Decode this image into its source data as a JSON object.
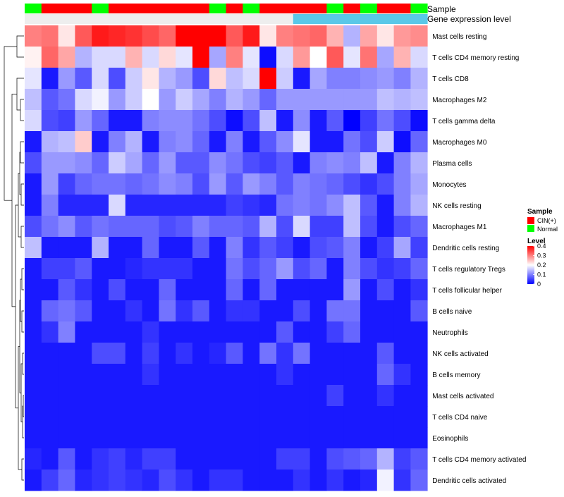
{
  "chart_data": {
    "type": "heatmap",
    "title": "",
    "annotation_tracks": [
      {
        "name": "Sample",
        "values": [
          "Normal",
          "CIN(+)",
          "CIN(+)",
          "CIN(+)",
          "Normal",
          "CIN(+)",
          "CIN(+)",
          "CIN(+)",
          "CIN(+)",
          "CIN(+)",
          "CIN(+)",
          "Normal",
          "CIN(+)",
          "Normal",
          "CIN(+)",
          "CIN(+)",
          "CIN(+)",
          "CIN(+)",
          "Normal",
          "CIN(+)",
          "Normal",
          "CIN(+)",
          "CIN(+)",
          "Normal"
        ]
      },
      {
        "name": "Gene expression level",
        "values": [
          "low",
          "low",
          "low",
          "low",
          "low",
          "low",
          "low",
          "low",
          "low",
          "low",
          "low",
          "low",
          "low",
          "low",
          "low",
          "low",
          "high",
          "high",
          "high",
          "high",
          "high",
          "high",
          "high",
          "high"
        ]
      }
    ],
    "track_colors": {
      "Sample": {
        "CIN(+)": "#ff0000",
        "Normal": "#00ff00"
      },
      "Gene expression level": {
        "low": "#eeeeee",
        "high": "#5ac8e8"
      }
    },
    "rows": [
      "Mast cells resting",
      "T cells CD4 memory resting",
      "T cells CD8",
      "Macrophages M2",
      "T cells gamma delta",
      "Macrophages M0",
      "Plasma cells",
      "Monocytes",
      "NK cells resting",
      "Macrophages M1",
      "Dendritic cells resting",
      "T cells regulatory  Tregs",
      "T cells follicular helper",
      "B cells naive",
      "Neutrophils",
      "NK cells activated",
      "B cells memory",
      "Mast cells activated",
      "T cells CD4 naive",
      "Eosinophils",
      "T cells CD4 memory activated",
      "Dendritic cells activated"
    ],
    "values": [
      [
        0.3,
        0.31,
        0.22,
        0.33,
        0.38,
        0.37,
        0.36,
        0.34,
        0.32,
        0.4,
        0.4,
        0.4,
        0.33,
        0.38,
        0.22,
        0.3,
        0.31,
        0.32,
        0.26,
        0.14,
        0.27,
        0.22,
        0.28,
        0.29
      ],
      [
        0.21,
        0.32,
        0.27,
        0.14,
        0.17,
        0.17,
        0.26,
        0.17,
        0.23,
        0.18,
        0.4,
        0.13,
        0.3,
        0.18,
        0.01,
        0.17,
        0.28,
        0.2,
        0.33,
        0.18,
        0.31,
        0.13,
        0.26,
        0.17
      ],
      [
        0.18,
        0.02,
        0.12,
        0.07,
        0.17,
        0.06,
        0.16,
        0.22,
        0.14,
        0.12,
        0.06,
        0.23,
        0.15,
        0.17,
        0.4,
        0.16,
        0.02,
        0.13,
        0.1,
        0.1,
        0.11,
        0.12,
        0.1,
        0.14
      ],
      [
        0.15,
        0.07,
        0.09,
        0.17,
        0.19,
        0.12,
        0.16,
        0.2,
        0.12,
        0.16,
        0.13,
        0.1,
        0.14,
        0.12,
        0.08,
        0.12,
        0.12,
        0.12,
        0.12,
        0.12,
        0.12,
        0.15,
        0.14,
        0.15
      ],
      [
        0.17,
        0.06,
        0.05,
        0.12,
        0.08,
        0.02,
        0.02,
        0.1,
        0.11,
        0.11,
        0.09,
        0.06,
        0.01,
        0.06,
        0.15,
        0.02,
        0.11,
        0.02,
        0.07,
        0.0,
        0.05,
        0.09,
        0.06,
        0.01
      ],
      [
        0.02,
        0.14,
        0.15,
        0.24,
        0.02,
        0.1,
        0.14,
        0.02,
        0.1,
        0.11,
        0.08,
        0.02,
        0.1,
        0.02,
        0.07,
        0.11,
        0.18,
        0.02,
        0.02,
        0.09,
        0.06,
        0.16,
        0.01,
        0.08
      ],
      [
        0.06,
        0.12,
        0.12,
        0.11,
        0.08,
        0.16,
        0.13,
        0.08,
        0.12,
        0.07,
        0.07,
        0.11,
        0.09,
        0.06,
        0.05,
        0.07,
        0.02,
        0.1,
        0.11,
        0.1,
        0.15,
        0.02,
        0.1,
        0.14
      ],
      [
        0.02,
        0.12,
        0.05,
        0.08,
        0.09,
        0.09,
        0.08,
        0.09,
        0.11,
        0.1,
        0.06,
        0.12,
        0.07,
        0.12,
        0.1,
        0.07,
        0.1,
        0.09,
        0.08,
        0.06,
        0.04,
        0.06,
        0.1,
        0.13
      ],
      [
        0.02,
        0.1,
        0.03,
        0.03,
        0.03,
        0.17,
        0.03,
        0.03,
        0.03,
        0.03,
        0.03,
        0.03,
        0.05,
        0.04,
        0.03,
        0.09,
        0.1,
        0.09,
        0.11,
        0.15,
        0.07,
        0.02,
        0.1,
        0.14
      ],
      [
        0.06,
        0.09,
        0.11,
        0.07,
        0.09,
        0.08,
        0.08,
        0.08,
        0.06,
        0.07,
        0.1,
        0.08,
        0.08,
        0.07,
        0.14,
        0.06,
        0.17,
        0.05,
        0.05,
        0.15,
        0.06,
        0.02,
        0.06,
        0.08
      ],
      [
        0.15,
        0.02,
        0.02,
        0.02,
        0.14,
        0.02,
        0.02,
        0.08,
        0.02,
        0.02,
        0.07,
        0.02,
        0.1,
        0.04,
        0.07,
        0.05,
        0.02,
        0.06,
        0.07,
        0.1,
        0.02,
        0.05,
        0.13,
        0.05
      ],
      [
        0.02,
        0.05,
        0.05,
        0.07,
        0.02,
        0.02,
        0.03,
        0.04,
        0.04,
        0.04,
        0.02,
        0.02,
        0.09,
        0.06,
        0.08,
        0.12,
        0.06,
        0.08,
        0.02,
        0.1,
        0.06,
        0.04,
        0.05,
        0.08
      ],
      [
        0.02,
        0.02,
        0.07,
        0.04,
        0.02,
        0.06,
        0.02,
        0.02,
        0.08,
        0.02,
        0.02,
        0.02,
        0.08,
        0.02,
        0.08,
        0.02,
        0.02,
        0.02,
        0.02,
        0.12,
        0.02,
        0.06,
        0.02,
        0.04
      ],
      [
        0.02,
        0.08,
        0.09,
        0.07,
        0.02,
        0.02,
        0.04,
        0.02,
        0.09,
        0.04,
        0.07,
        0.02,
        0.04,
        0.04,
        0.02,
        0.02,
        0.06,
        0.02,
        0.09,
        0.09,
        0.02,
        0.02,
        0.02,
        0.07
      ],
      [
        0.02,
        0.04,
        0.1,
        0.02,
        0.02,
        0.02,
        0.02,
        0.04,
        0.02,
        0.02,
        0.02,
        0.02,
        0.02,
        0.02,
        0.02,
        0.07,
        0.02,
        0.02,
        0.05,
        0.08,
        0.02,
        0.02,
        0.02,
        0.02
      ],
      [
        0.02,
        0.02,
        0.02,
        0.02,
        0.06,
        0.06,
        0.02,
        0.05,
        0.02,
        0.04,
        0.02,
        0.03,
        0.07,
        0.02,
        0.09,
        0.04,
        0.09,
        0.02,
        0.02,
        0.02,
        0.02,
        0.07,
        0.02,
        0.02
      ],
      [
        0.02,
        0.02,
        0.02,
        0.02,
        0.02,
        0.02,
        0.02,
        0.04,
        0.02,
        0.02,
        0.02,
        0.02,
        0.02,
        0.02,
        0.02,
        0.04,
        0.02,
        0.02,
        0.02,
        0.02,
        0.02,
        0.08,
        0.04,
        0.02
      ],
      [
        0.02,
        0.02,
        0.02,
        0.02,
        0.02,
        0.02,
        0.02,
        0.02,
        0.02,
        0.02,
        0.02,
        0.02,
        0.02,
        0.02,
        0.02,
        0.02,
        0.02,
        0.02,
        0.05,
        0.02,
        0.02,
        0.04,
        0.02,
        0.02
      ],
      [
        0.02,
        0.02,
        0.02,
        0.02,
        0.02,
        0.02,
        0.02,
        0.02,
        0.02,
        0.02,
        0.02,
        0.02,
        0.02,
        0.02,
        0.02,
        0.02,
        0.02,
        0.02,
        0.02,
        0.02,
        0.02,
        0.02,
        0.02,
        0.02
      ],
      [
        0.02,
        0.02,
        0.02,
        0.02,
        0.02,
        0.02,
        0.02,
        0.02,
        0.02,
        0.02,
        0.02,
        0.02,
        0.02,
        0.02,
        0.02,
        0.02,
        0.02,
        0.02,
        0.02,
        0.02,
        0.02,
        0.02,
        0.02,
        0.02
      ],
      [
        0.03,
        0.02,
        0.07,
        0.02,
        0.04,
        0.05,
        0.03,
        0.05,
        0.05,
        0.02,
        0.02,
        0.02,
        0.02,
        0.02,
        0.02,
        0.05,
        0.05,
        0.02,
        0.06,
        0.07,
        0.08,
        0.14,
        0.05,
        0.07
      ],
      [
        0.02,
        0.05,
        0.08,
        0.03,
        0.04,
        0.05,
        0.04,
        0.03,
        0.06,
        0.04,
        0.02,
        0.04,
        0.04,
        0.02,
        0.02,
        0.02,
        0.04,
        0.02,
        0.04,
        0.02,
        0.03,
        0.19,
        0.04,
        0.08
      ]
    ],
    "color_scale": {
      "min": 0,
      "max": 0.4,
      "low": "#0000ff",
      "mid": "#ffffff",
      "high": "#ff0000",
      "mid_value": 0.2
    },
    "legend": {
      "sample_title": "Sample",
      "sample_entries": [
        {
          "label": "CIN(+)",
          "color": "#ff0000"
        },
        {
          "label": "Normal",
          "color": "#00ff00"
        }
      ],
      "level_title": "Level",
      "level_ticks": [
        {
          "label": "0.4",
          "value": 0.4
        },
        {
          "label": "0.3",
          "value": 0.3
        },
        {
          "label": "0.2",
          "value": 0.2
        },
        {
          "label": "0.1",
          "value": 0.1
        },
        {
          "label": "0",
          "value": 0
        }
      ],
      "placement": "right"
    }
  }
}
